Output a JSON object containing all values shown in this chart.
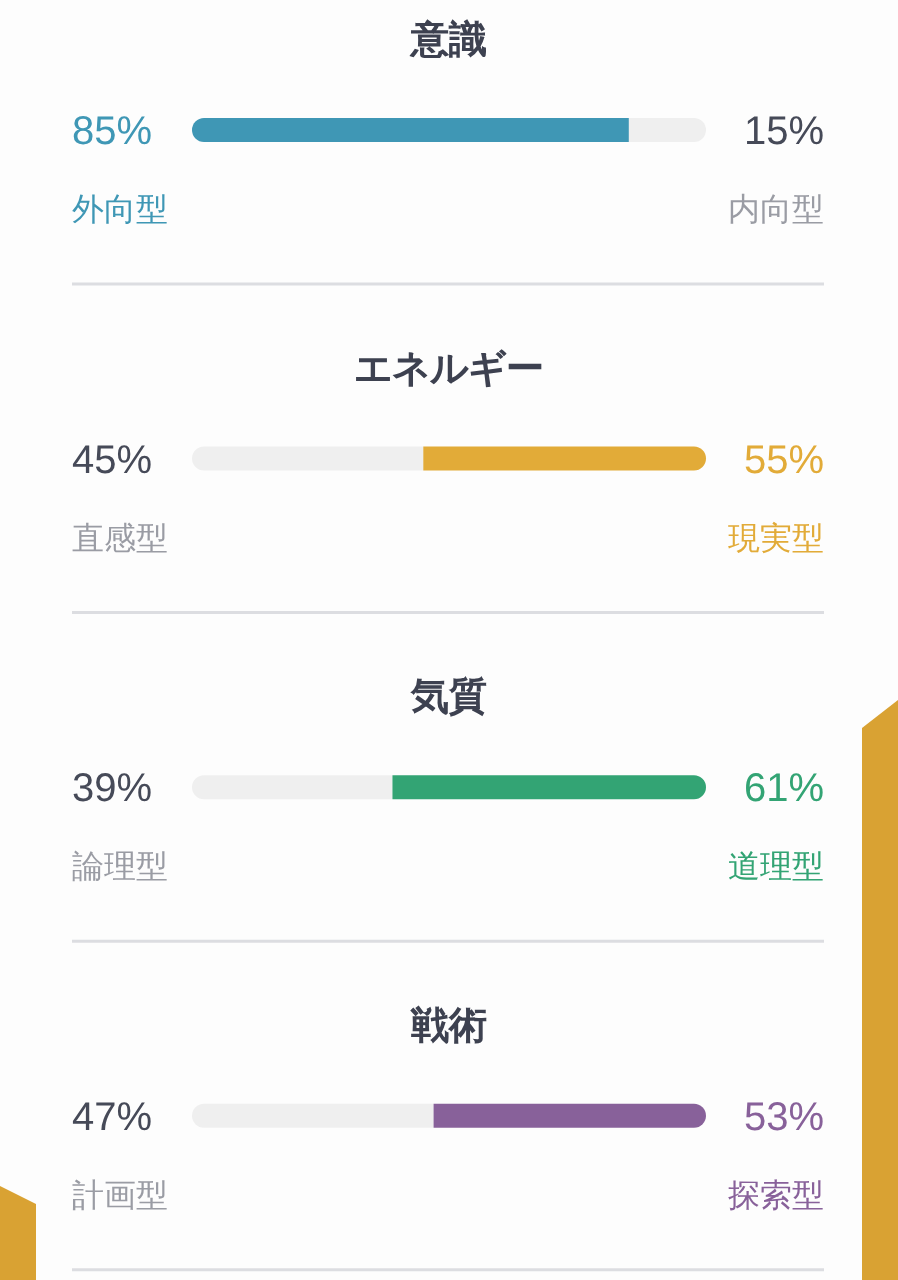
{
  "chart_data": [
    {
      "type": "bar",
      "orientation": "horizontal",
      "stacked": true,
      "title": "意識",
      "categories": [
        null
      ],
      "xlim": [
        0,
        100
      ],
      "series": [
        {
          "name": "外向型",
          "color": "#3f97b5",
          "values": [
            85
          ],
          "value_labels": [
            "85%"
          ]
        },
        {
          "name": "内向型",
          "color": "#efefef",
          "values": [
            15
          ],
          "value_labels": [
            "15%"
          ]
        }
      ]
    },
    {
      "type": "bar",
      "orientation": "horizontal",
      "stacked": true,
      "title": "エネルギー",
      "categories": [
        null
      ],
      "xlim": [
        0,
        100
      ],
      "series": [
        {
          "name": "直感型",
          "color": "#efefef",
          "values": [
            45
          ],
          "value_labels": [
            "45%"
          ]
        },
        {
          "name": "現実型",
          "color": "#e2ab38",
          "values": [
            55
          ],
          "value_labels": [
            "55%"
          ]
        }
      ]
    },
    {
      "type": "bar",
      "orientation": "horizontal",
      "stacked": true,
      "title": "気質",
      "categories": [
        null
      ],
      "xlim": [
        0,
        100
      ],
      "series": [
        {
          "name": "論理型",
          "color": "#efefef",
          "values": [
            39
          ],
          "value_labels": [
            "39%"
          ]
        },
        {
          "name": "道理型",
          "color": "#33a474",
          "values": [
            61
          ],
          "value_labels": [
            "61%"
          ]
        }
      ]
    },
    {
      "type": "bar",
      "orientation": "horizontal",
      "stacked": true,
      "title": "戦術",
      "categories": [
        null
      ],
      "xlim": [
        0,
        100
      ],
      "series": [
        {
          "name": "計画型",
          "color": "#efefef",
          "values": [
            47
          ],
          "value_labels": [
            "47%"
          ]
        },
        {
          "name": "探索型",
          "color": "#88619a",
          "values": [
            53
          ],
          "value_labels": [
            "53%"
          ]
        }
      ]
    }
  ]
}
